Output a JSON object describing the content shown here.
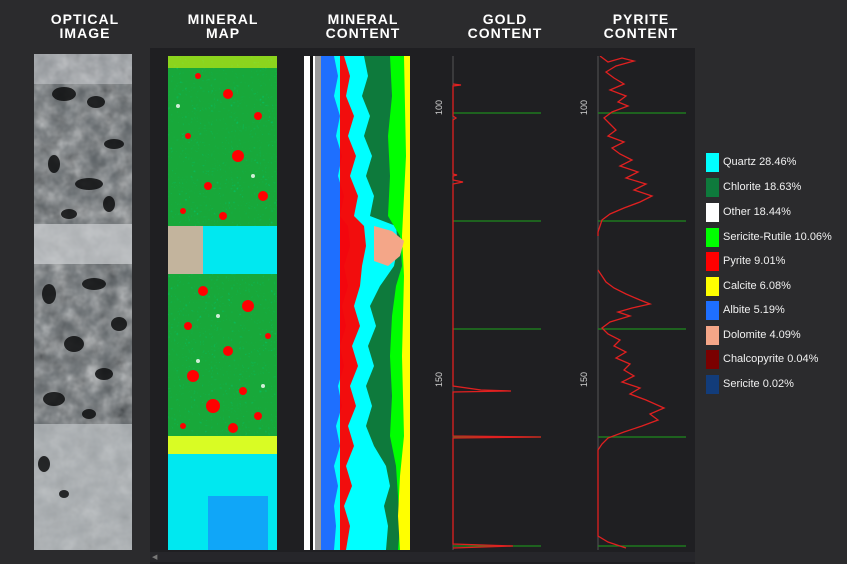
{
  "headers": {
    "optical_line1": "OPTICAL",
    "optical_line2": "IMAGE",
    "mineral_map_line1": "MINERAL",
    "mineral_map_line2": "MAP",
    "mineral_content_line1": "MINERAL",
    "mineral_content_line2": "CONTENT",
    "gold_line1": "GOLD",
    "gold_line2": "CONTENT",
    "pyrite_line1": "PYRITE",
    "pyrite_line2": "CONTENT"
  },
  "depth_ticks": {
    "gold": [
      "100",
      "150"
    ],
    "pyrite": [
      "100",
      "150"
    ]
  },
  "legend": [
    {
      "label": "Quartz 28.46%",
      "color": "#00ffff"
    },
    {
      "label": "Chlorite 18.63%",
      "color": "#0e7a3c"
    },
    {
      "label": "Other 18.44%",
      "color": "#ffffff"
    },
    {
      "label": "Sericite-Rutile 10.06%",
      "color": "#00ff00"
    },
    {
      "label": "Pyrite 9.01%",
      "color": "#ff0000"
    },
    {
      "label": "Calcite 6.08%",
      "color": "#ffff00"
    },
    {
      "label": "Albite 5.19%",
      "color": "#1e6fff"
    },
    {
      "label": "Dolomite 4.09%",
      "color": "#f4a688"
    },
    {
      "label": "Chalcopyrite 0.04%",
      "color": "#7a0000"
    },
    {
      "label": "Sericite 0.02%",
      "color": "#123c7a"
    }
  ]
}
